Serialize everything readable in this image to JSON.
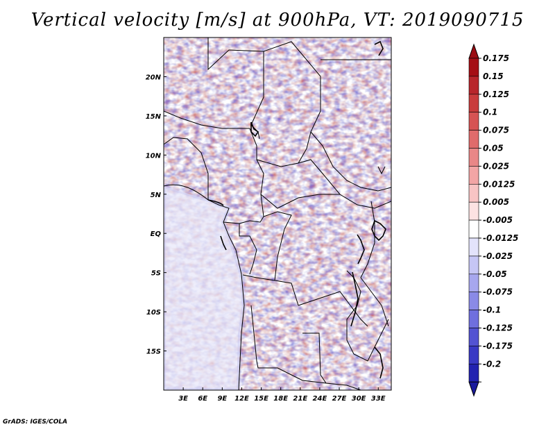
{
  "title": "Vertical velocity [m/s] at 900hPa, VT: 2019090715",
  "credit": "GrADS: IGES/COLA",
  "map": {
    "lon_range": [
      0,
      35
    ],
    "lat_range": [
      -20,
      25
    ],
    "x_ticks": [
      {
        "value": 3,
        "label": "3E"
      },
      {
        "value": 6,
        "label": "6E"
      },
      {
        "value": 9,
        "label": "9E"
      },
      {
        "value": 12,
        "label": "12E"
      },
      {
        "value": 15,
        "label": "15E"
      },
      {
        "value": 18,
        "label": "18E"
      },
      {
        "value": 21,
        "label": "21E"
      },
      {
        "value": 24,
        "label": "24E"
      },
      {
        "value": 27,
        "label": "27E"
      },
      {
        "value": 30,
        "label": "30E"
      },
      {
        "value": 33,
        "label": "33E"
      }
    ],
    "y_ticks": [
      {
        "value": 20,
        "label": "20N"
      },
      {
        "value": 15,
        "label": "15N"
      },
      {
        "value": 10,
        "label": "10N"
      },
      {
        "value": 5,
        "label": "5N"
      },
      {
        "value": 0,
        "label": "EQ"
      },
      {
        "value": -5,
        "label": "5S"
      },
      {
        "value": -10,
        "label": "10S"
      },
      {
        "value": -15,
        "label": "15S"
      }
    ]
  },
  "colorbar": {
    "levels": [
      {
        "label": "0.175",
        "color": "#a50f15"
      },
      {
        "label": "0.15",
        "color": "#b8262b"
      },
      {
        "label": "0.125",
        "color": "#c93c3c"
      },
      {
        "label": "0.1",
        "color": "#d65353"
      },
      {
        "label": "0.075",
        "color": "#e06b6b"
      },
      {
        "label": "0.05",
        "color": "#e98787"
      },
      {
        "label": "0.025",
        "color": "#f2a5a5"
      },
      {
        "label": "0.0125",
        "color": "#f8c4c4"
      },
      {
        "label": "0.005",
        "color": "#fce2e2"
      },
      {
        "label": "-0.005",
        "color": "#ffffff"
      },
      {
        "label": "-0.0125",
        "color": "#e3e3fb"
      },
      {
        "label": "-0.025",
        "color": "#c6c6f5"
      },
      {
        "label": "-0.05",
        "color": "#a7a7ee"
      },
      {
        "label": "-0.075",
        "color": "#8a8ae6"
      },
      {
        "label": "-0.1",
        "color": "#6f6fde"
      },
      {
        "label": "-0.125",
        "color": "#5353d2"
      },
      {
        "label": "-0.175",
        "color": "#3939c4"
      },
      {
        "label": "-0.2",
        "color": "#2222b0"
      }
    ],
    "top_color": "#9b0d13",
    "bottom_color": "#1a1a9c"
  }
}
